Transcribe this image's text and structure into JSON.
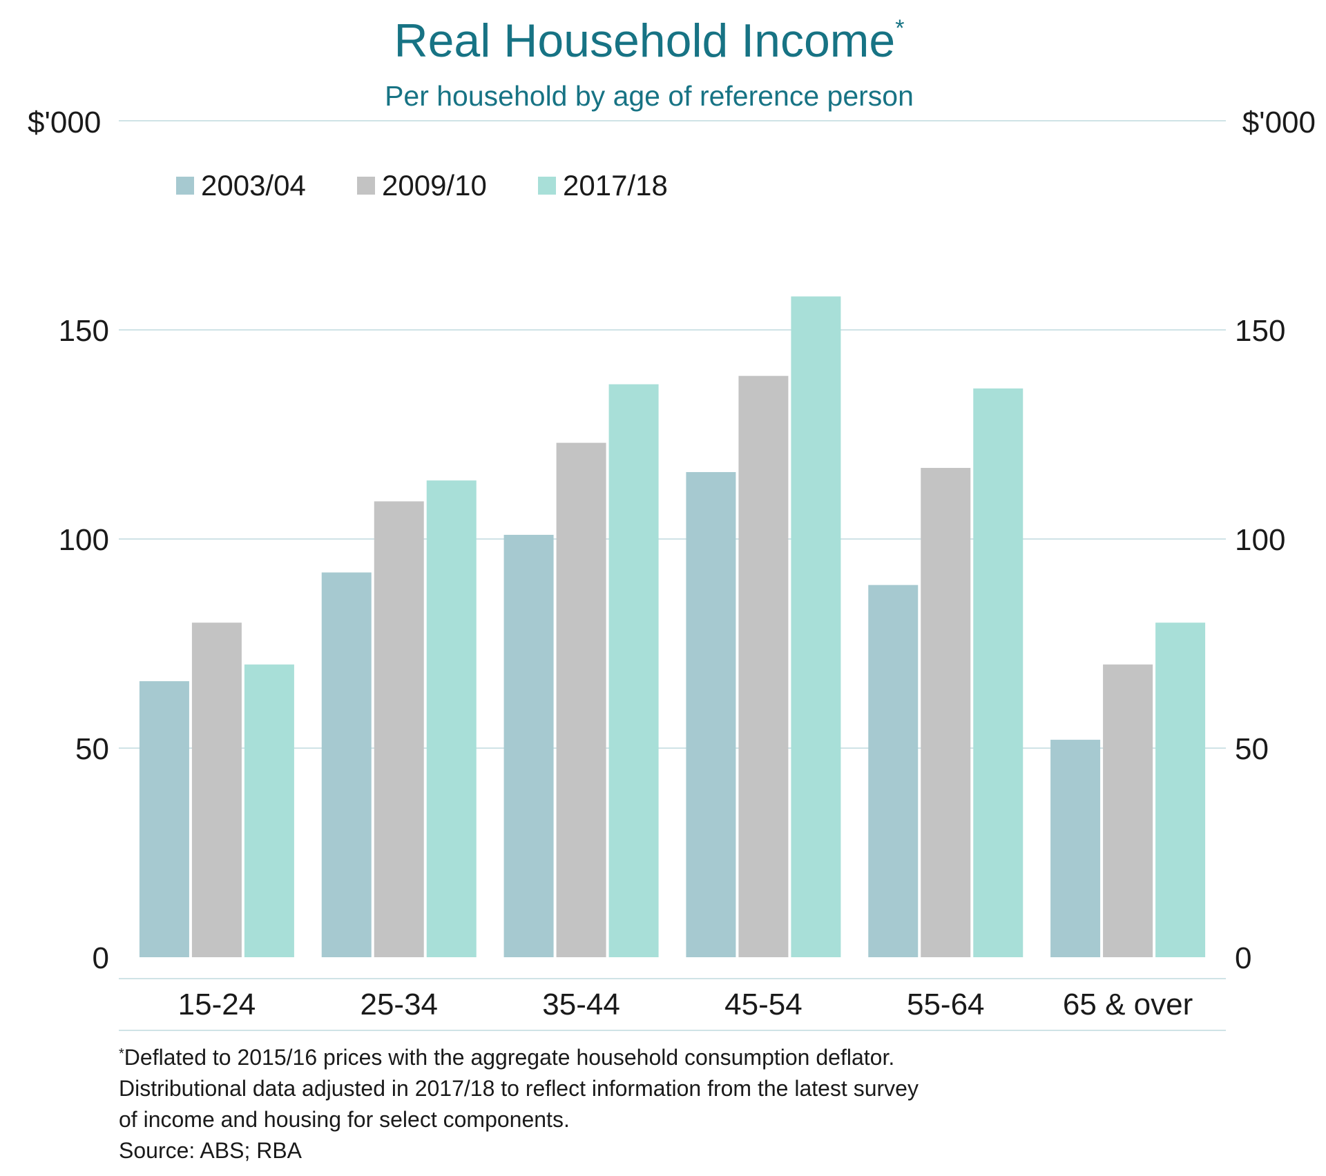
{
  "chart_data": {
    "type": "bar",
    "title": "Real Household Income",
    "title_marker": "*",
    "subtitle": "Per household by age of reference person",
    "ylabel_left": "$'000",
    "ylabel_right": "$'000",
    "ylim": [
      0,
      200
    ],
    "yticks": [
      0,
      50,
      100,
      150
    ],
    "grid": true,
    "legend_position": "top-left",
    "categories": [
      "15-24",
      "25-34",
      "35-44",
      "45-54",
      "55-64",
      "65 & over"
    ],
    "series": [
      {
        "name": "2003/04",
        "color": "#a6c9d0",
        "values": [
          66,
          92,
          101,
          116,
          89,
          52
        ]
      },
      {
        "name": "2009/10",
        "color": "#c3c3c3",
        "values": [
          80,
          109,
          123,
          139,
          117,
          70
        ]
      },
      {
        "name": "2017/18",
        "color": "#a8dfd8",
        "values": [
          70,
          114,
          137,
          158,
          136,
          80
        ]
      }
    ]
  },
  "notes": {
    "marker": "*",
    "line1": "Deflated to 2015/16 prices with the aggregate household consumption deflator.",
    "line2": "Distributional data adjusted in 2017/18 to reflect information from the latest survey",
    "line3": "of income and housing for select components.",
    "source": "Source: ABS; RBA"
  }
}
